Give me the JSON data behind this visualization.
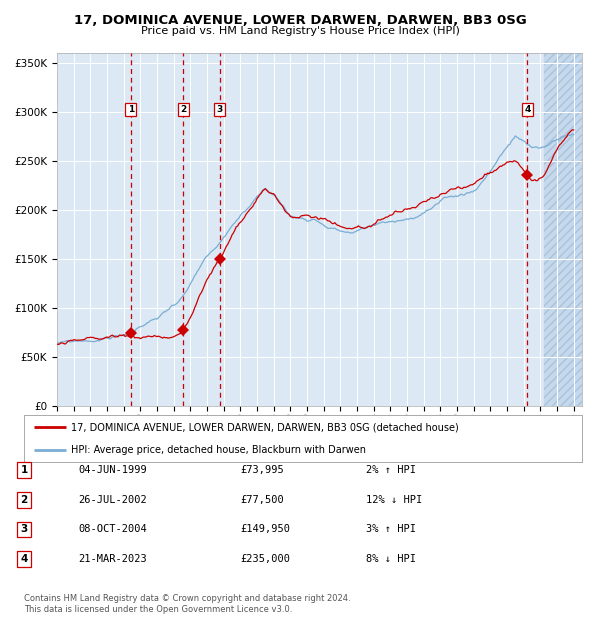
{
  "title": "17, DOMINICA AVENUE, LOWER DARWEN, DARWEN, BB3 0SG",
  "subtitle": "Price paid vs. HM Land Registry's House Price Index (HPI)",
  "ylim": [
    0,
    360000
  ],
  "yticks": [
    0,
    50000,
    100000,
    150000,
    200000,
    250000,
    300000,
    350000
  ],
  "ytick_labels": [
    "£0",
    "£50K",
    "£100K",
    "£150K",
    "£200K",
    "£250K",
    "£300K",
    "£350K"
  ],
  "xlim_start": 1995.0,
  "xlim_end": 2026.5,
  "bg_color": "#dce9f5",
  "grid_color": "#ffffff",
  "red_line_color": "#cc0000",
  "blue_line_color": "#7aadd4",
  "sale_marker_color": "#cc0000",
  "vline_color": "#cc0000",
  "sales": [
    {
      "label": "1",
      "year": 1999.42,
      "price": 73995
    },
    {
      "label": "2",
      "year": 2002.57,
      "price": 77500
    },
    {
      "label": "3",
      "year": 2004.77,
      "price": 149950
    },
    {
      "label": "4",
      "year": 2023.22,
      "price": 235000
    }
  ],
  "footer": "Contains HM Land Registry data © Crown copyright and database right 2024.\nThis data is licensed under the Open Government Licence v3.0.",
  "legend_entries": [
    "17, DOMINICA AVENUE, LOWER DARWEN, DARWEN, BB3 0SG (detached house)",
    "HPI: Average price, detached house, Blackburn with Darwen"
  ],
  "table_rows": [
    {
      "num": "1",
      "date": "04-JUN-1999",
      "price": "£73,995",
      "pct": "2% ↑ HPI"
    },
    {
      "num": "2",
      "date": "26-JUL-2002",
      "price": "£77,500",
      "pct": "12% ↓ HPI"
    },
    {
      "num": "3",
      "date": "08-OCT-2004",
      "price": "£149,950",
      "pct": "3% ↑ HPI"
    },
    {
      "num": "4",
      "date": "21-MAR-2023",
      "price": "£235,000",
      "pct": "8% ↓ HPI"
    }
  ],
  "hpi_anchors": [
    [
      1995.0,
      63000
    ],
    [
      1995.5,
      63500
    ],
    [
      1996.0,
      64200
    ],
    [
      1996.5,
      64800
    ],
    [
      1997.0,
      65500
    ],
    [
      1997.5,
      66500
    ],
    [
      1998.0,
      68000
    ],
    [
      1998.5,
      70000
    ],
    [
      1999.0,
      72000
    ],
    [
      1999.5,
      74500
    ],
    [
      2000.0,
      78000
    ],
    [
      2000.5,
      83000
    ],
    [
      2001.0,
      88000
    ],
    [
      2001.5,
      94000
    ],
    [
      2002.0,
      102000
    ],
    [
      2002.5,
      110000
    ],
    [
      2003.0,
      122000
    ],
    [
      2003.5,
      136000
    ],
    [
      2004.0,
      146000
    ],
    [
      2004.5,
      153000
    ],
    [
      2005.0,
      163000
    ],
    [
      2005.5,
      172000
    ],
    [
      2006.0,
      182000
    ],
    [
      2006.5,
      191000
    ],
    [
      2007.0,
      204000
    ],
    [
      2007.5,
      212000
    ],
    [
      2008.0,
      208000
    ],
    [
      2008.5,
      197000
    ],
    [
      2009.0,
      185000
    ],
    [
      2009.5,
      183000
    ],
    [
      2010.0,
      184000
    ],
    [
      2010.5,
      185000
    ],
    [
      2011.0,
      182000
    ],
    [
      2011.5,
      179000
    ],
    [
      2012.0,
      176000
    ],
    [
      2012.5,
      175000
    ],
    [
      2013.0,
      176000
    ],
    [
      2013.5,
      178000
    ],
    [
      2014.0,
      180000
    ],
    [
      2014.5,
      182000
    ],
    [
      2015.0,
      184000
    ],
    [
      2015.5,
      185000
    ],
    [
      2016.0,
      187000
    ],
    [
      2016.5,
      189000
    ],
    [
      2017.0,
      193000
    ],
    [
      2017.5,
      197000
    ],
    [
      2018.0,
      200000
    ],
    [
      2018.5,
      202000
    ],
    [
      2019.0,
      204000
    ],
    [
      2019.5,
      206000
    ],
    [
      2020.0,
      210000
    ],
    [
      2020.5,
      220000
    ],
    [
      2021.0,
      232000
    ],
    [
      2021.5,
      246000
    ],
    [
      2022.0,
      258000
    ],
    [
      2022.5,
      267000
    ],
    [
      2023.0,
      262000
    ],
    [
      2023.5,
      254000
    ],
    [
      2024.0,
      252000
    ],
    [
      2024.3,
      254000
    ],
    [
      2025.0,
      262000
    ],
    [
      2025.9,
      268000
    ]
  ]
}
